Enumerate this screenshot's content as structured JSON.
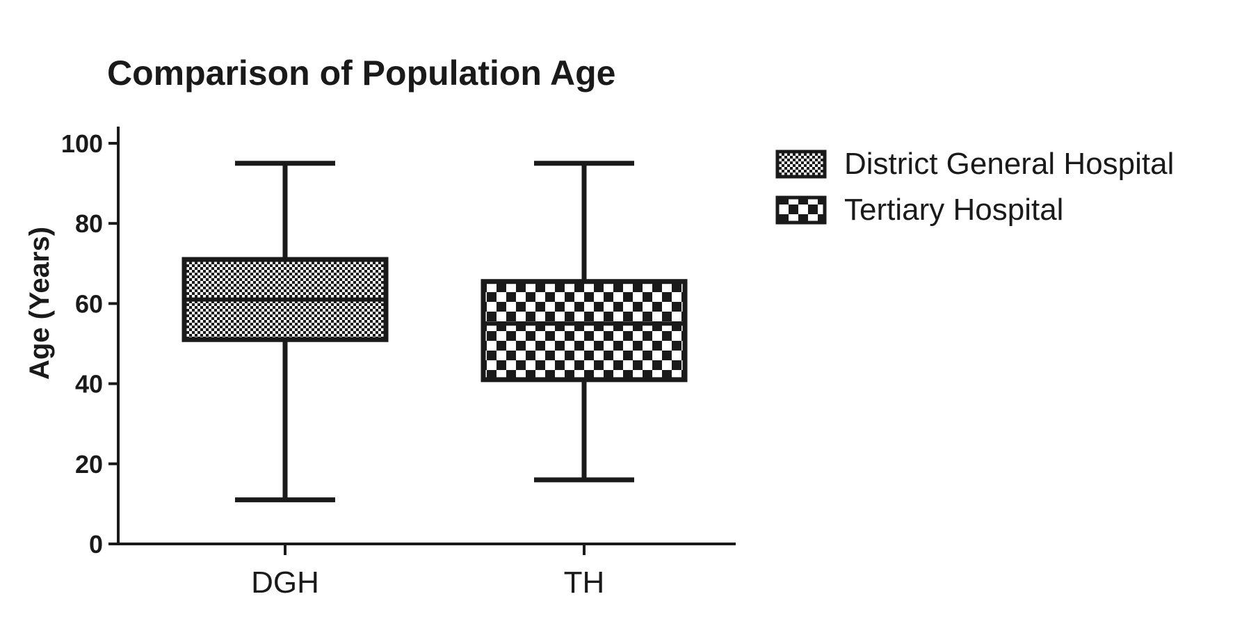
{
  "chart_data": {
    "type": "box",
    "title": "Comparison of Population Age",
    "xlabel": "",
    "ylabel": "Age (Years)",
    "ylim": [
      0,
      100
    ],
    "yticks": [
      0,
      20,
      40,
      60,
      80,
      100
    ],
    "grid": false,
    "legend_position": "right",
    "categories": [
      "DGH",
      "TH"
    ],
    "series": [
      {
        "name": "District General Hospital",
        "category": "DGH",
        "pattern": "fine-checker",
        "min": 11,
        "q1": 51,
        "median": 61,
        "q3": 71,
        "max": 95
      },
      {
        "name": "Tertiary Hospital",
        "category": "TH",
        "pattern": "coarse-checker",
        "min": 16,
        "q1": 41,
        "median": 55,
        "q3": 65.5,
        "max": 95
      }
    ],
    "colors": {
      "ink": "#1a1a1a",
      "background": "#ffffff"
    }
  }
}
